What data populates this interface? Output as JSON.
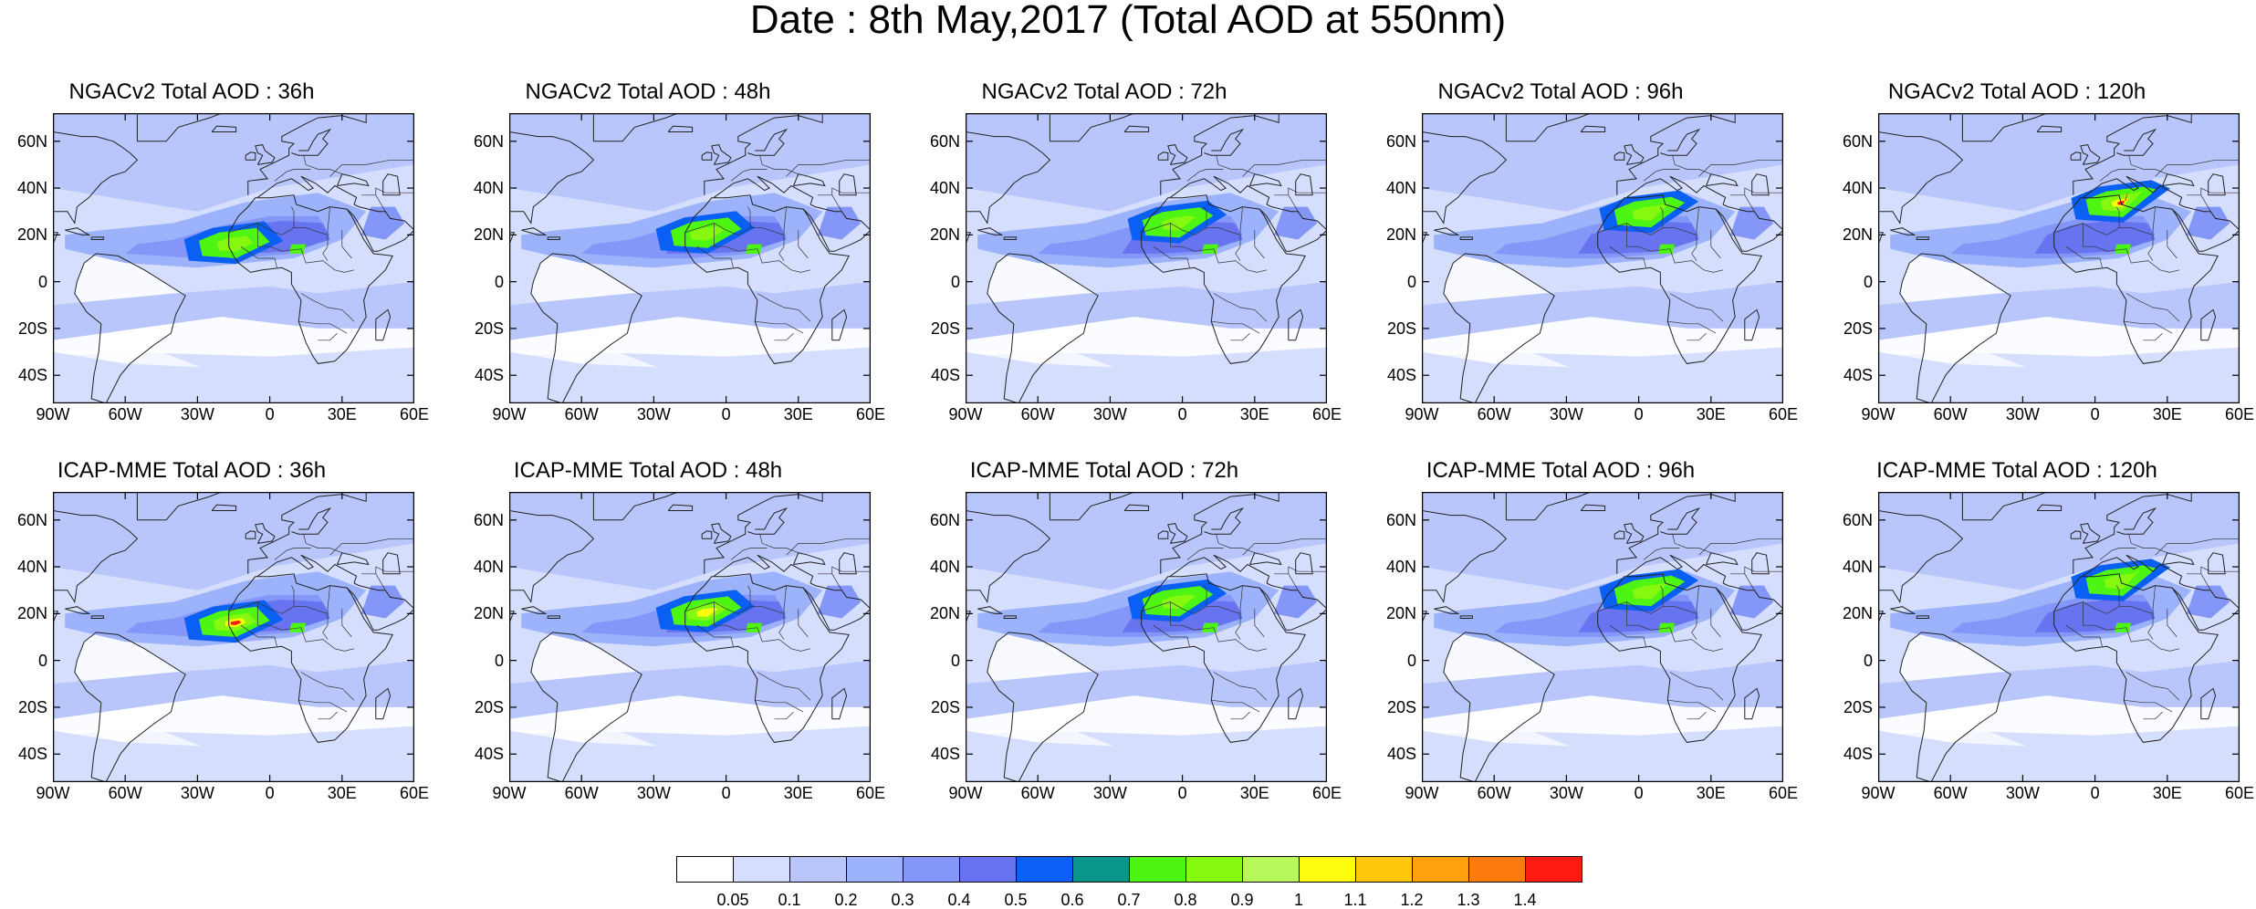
{
  "title": "Date : 8th May,2017 (Total AOD at 550nm)",
  "panels": [
    {
      "title": "NGACv2 Total AOD : 36h",
      "model": "NGACv2",
      "lead_hours": 36,
      "intensity": 0.85
    },
    {
      "title": "NGACv2 Total AOD : 48h",
      "model": "NGACv2",
      "lead_hours": 48,
      "intensity": 0.8
    },
    {
      "title": "NGACv2 Total AOD : 72h",
      "model": "NGACv2",
      "lead_hours": 72,
      "intensity": 0.8
    },
    {
      "title": "NGACv2 Total AOD : 96h",
      "model": "NGACv2",
      "lead_hours": 96,
      "intensity": 0.85
    },
    {
      "title": "NGACv2 Total AOD : 120h",
      "model": "NGACv2",
      "lead_hours": 120,
      "intensity": 1.0
    },
    {
      "title": "ICAP-MME Total AOD : 36h",
      "model": "ICAP-MME",
      "lead_hours": 36,
      "intensity": 1.0
    },
    {
      "title": "ICAP-MME Total AOD : 48h",
      "model": "ICAP-MME",
      "lead_hours": 48,
      "intensity": 0.95
    },
    {
      "title": "ICAP-MME Total AOD : 72h",
      "model": "ICAP-MME",
      "lead_hours": 72,
      "intensity": 0.8
    },
    {
      "title": "ICAP-MME Total AOD : 96h",
      "model": "ICAP-MME",
      "lead_hours": 96,
      "intensity": 0.85
    },
    {
      "title": "ICAP-MME Total AOD : 120h",
      "model": "ICAP-MME",
      "lead_hours": 120,
      "intensity": 0.85
    }
  ],
  "lat_ticks": [
    "60N",
    "40N",
    "20N",
    "0",
    "20S",
    "40S"
  ],
  "lat_values": [
    60,
    40,
    20,
    0,
    -20,
    -40
  ],
  "lon_ticks": [
    "90W",
    "60W",
    "30W",
    "0",
    "30E",
    "60E"
  ],
  "lon_values": [
    -90,
    -60,
    -30,
    0,
    30,
    60
  ],
  "extent": {
    "lon": [
      -90,
      60
    ],
    "lat": [
      -52,
      72
    ]
  },
  "colorbar": {
    "colors": [
      "#ffffff",
      "#d6defd",
      "#b9c6fb",
      "#9cb2fa",
      "#8496f8",
      "#6873ef",
      "#0a5ff4",
      "#08968c",
      "#4ef513",
      "#86f80f",
      "#b7f95a",
      "#fffb0c",
      "#ffc70b",
      "#fea10d",
      "#fd7a0c",
      "#fd1a11"
    ],
    "labels": [
      "0.05",
      "0.1",
      "0.2",
      "0.3",
      "0.4",
      "0.5",
      "0.6",
      "0.7",
      "0.8",
      "0.9",
      "1",
      "1.1",
      "1.2",
      "1.3",
      "1.4"
    ]
  }
}
